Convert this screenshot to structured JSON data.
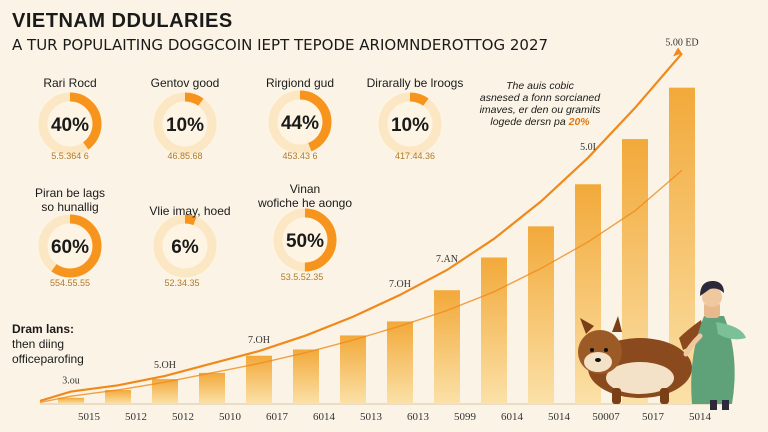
{
  "header": {
    "title": "VIETNAM DDULARIES",
    "subtitle": "A TUR POPULAITING DOGGCOIN IEPT TEPODE ARIOMNDEROTTOG 2027"
  },
  "donuts": [
    {
      "label": "Rari Rocd",
      "label2": "",
      "value": 40,
      "value_text": "40%",
      "sub": "5.5.364 6"
    },
    {
      "label": "Gentov good",
      "label2": "",
      "value": 10,
      "value_text": "10%",
      "sub": "46.85.68"
    },
    {
      "label": "Rirgiond gud",
      "label2": "",
      "value": 44,
      "value_text": "44%",
      "sub": "453.43 6"
    },
    {
      "label": "Dirarally be lroogs",
      "label2": "",
      "value": 10,
      "value_text": "10%",
      "sub": "417.44.36"
    },
    {
      "label": "Piran be lags",
      "label2": "so hunallig",
      "value": 60,
      "value_text": "60%",
      "sub": "554.55.55"
    },
    {
      "label": "Vlie imay, hoed",
      "label2": "",
      "value": 6,
      "value_text": "6%",
      "sub": "52.34.35"
    },
    {
      "label": "Vinan",
      "label2": "wofiche he aongo",
      "value": 50,
      "value_text": "50%",
      "sub": "53.5.52.35"
    }
  ],
  "note": {
    "lines": [
      "The auis cobic",
      "asnesed a fonn sorcianed",
      "imaves, er den ou gramits",
      "logede dersn pa"
    ],
    "highlight": "20%"
  },
  "left_note": {
    "lines": [
      "Dram lans:",
      "then diing",
      "officeparofing"
    ]
  },
  "chart_data": {
    "type": "bar",
    "categories": [
      "5015",
      "5012",
      "5012",
      "5010",
      "6017",
      "6014",
      "5013",
      "6013",
      "5099",
      "6014",
      "5014",
      "50007",
      "5017",
      "5014"
    ],
    "values": [
      4,
      9,
      16,
      20,
      31,
      35,
      44,
      53,
      73,
      94,
      114,
      141,
      170,
      203
    ],
    "line_values": [
      8,
      12,
      18,
      26,
      34,
      44,
      56,
      70,
      86,
      106,
      130,
      158,
      190,
      225
    ],
    "line_values_b": [
      5,
      9,
      14,
      20,
      26,
      33,
      41,
      50,
      60,
      72,
      87,
      104,
      124,
      150
    ],
    "point_labels": [
      "3.ou",
      "",
      "5.OH",
      "",
      "7.OH",
      "",
      "",
      "7.OH",
      "7.AN",
      "",
      "",
      "5.0I",
      "",
      "5.00 ED"
    ],
    "ylim": [
      0,
      240
    ],
    "title": "",
    "xlabel": "",
    "ylabel": ""
  },
  "colors": {
    "bar_top": "#f2a93a",
    "bar_bottom": "#fbe1a8",
    "line": "#f0891c",
    "donut_fill": "#f7941d",
    "donut_track": "#fbe7c4",
    "donut_center": "#fdf4e3",
    "sub_text": "#b07a2a"
  },
  "illustration": {
    "dog": "shiba-dog",
    "person": "girl-in-green"
  }
}
